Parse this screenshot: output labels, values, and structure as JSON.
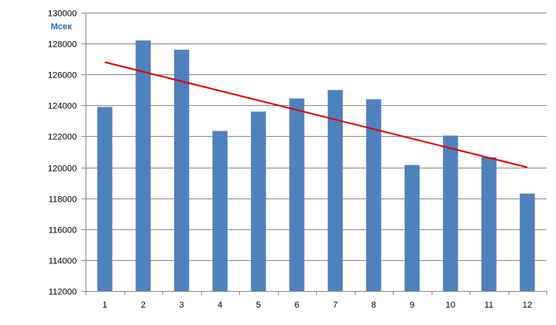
{
  "chart_data": {
    "type": "bar",
    "title": "",
    "xlabel": "",
    "ylabel": "Мсек",
    "categories": [
      "1",
      "2",
      "3",
      "4",
      "5",
      "6",
      "7",
      "8",
      "9",
      "10",
      "11",
      "12"
    ],
    "series": [
      {
        "values": [
          123900,
          128200,
          127600,
          122350,
          123600,
          124450,
          125000,
          124400,
          120150,
          122050,
          120650,
          118300
        ]
      }
    ],
    "trendline": {
      "type": "linear",
      "start": 126800,
      "end": 120000
    },
    "ylim": [
      112000,
      130000
    ],
    "yticks": [
      112000,
      114000,
      116000,
      118000,
      120000,
      122000,
      124000,
      126000,
      128000,
      130000
    ],
    "grid": true,
    "legend": "none",
    "colors": {
      "bars": "#4f81bd",
      "trendline": "#e00000",
      "gridline": "#8c8c8c",
      "axis": "#8c8c8c",
      "unit_label": "#1f6fb2"
    }
  }
}
